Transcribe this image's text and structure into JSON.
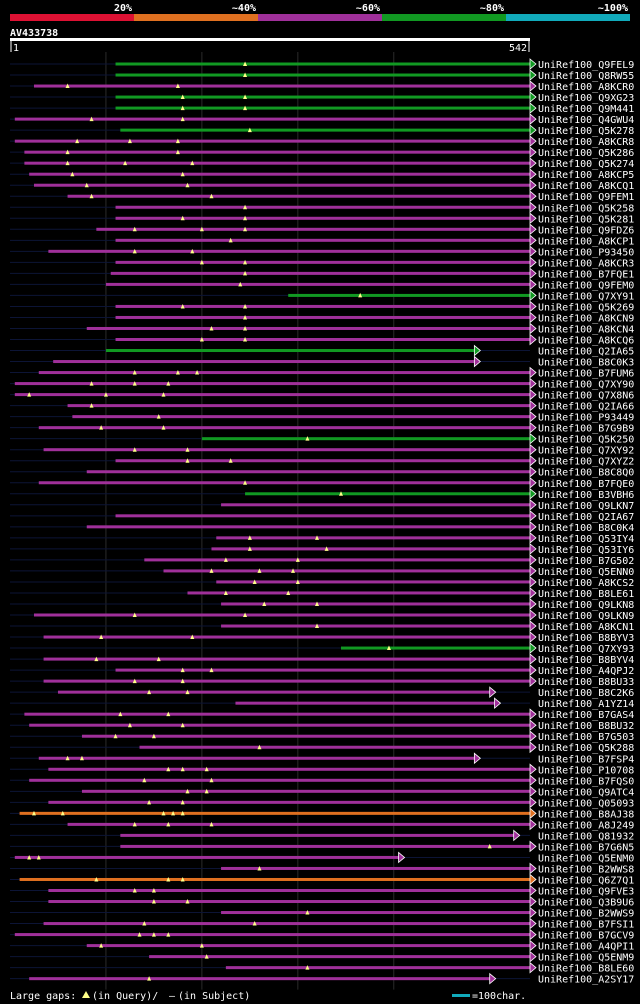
{
  "query_id": "AV433738",
  "scale": {
    "start": "1",
    "end": "542",
    "max": 542
  },
  "legend": {
    "segments": [
      {
        "label": "20%",
        "color": "#dd1133"
      },
      {
        "label": "~40%",
        "color": "#e07020"
      },
      {
        "label": "~60%",
        "color": "#a0309a"
      },
      {
        "label": "~80%",
        "color": "#119922"
      },
      {
        "label": "~100%",
        "color": "#11aabb"
      }
    ]
  },
  "footer": {
    "gaps_prefix": "Large gaps:",
    "gaps_query": "(in Query)/",
    "gaps_dash": "–",
    "gaps_subject": "(in Subject)",
    "scale_text": "=100char.",
    "scale_color": "#11aabb"
  },
  "chart_data": {
    "type": "alignment-overview",
    "title": "AV433738",
    "x_range": [
      1,
      542
    ],
    "gridlines": [
      100,
      200,
      300,
      400
    ],
    "hits": [
      {
        "id": "UniRef100_Q9FEL9",
        "start": 110,
        "end": 542,
        "color": "#119922",
        "gaps": [
          245
        ]
      },
      {
        "id": "UniRef100_Q8RW55",
        "start": 110,
        "end": 542,
        "color": "#119922",
        "gaps": [
          245
        ]
      },
      {
        "id": "UniRef100_A8KCR0",
        "start": 25,
        "end": 542,
        "color": "#a0309a",
        "gaps": [
          60,
          175
        ]
      },
      {
        "id": "UniRef100_Q9XG23",
        "start": 110,
        "end": 542,
        "color": "#119922",
        "gaps": [
          180,
          245
        ]
      },
      {
        "id": "UniRef100_Q9M441",
        "start": 110,
        "end": 542,
        "color": "#119922",
        "gaps": [
          180,
          245
        ]
      },
      {
        "id": "UniRef100_Q4GWU4",
        "start": 5,
        "end": 542,
        "color": "#a0309a",
        "gaps": [
          85,
          180
        ]
      },
      {
        "id": "UniRef100_Q5K278",
        "start": 115,
        "end": 542,
        "color": "#119922",
        "gaps": [
          250
        ]
      },
      {
        "id": "UniRef100_A8KCR8",
        "start": 5,
        "end": 542,
        "color": "#a0309a",
        "gaps": [
          70,
          125,
          175
        ]
      },
      {
        "id": "UniRef100_Q5K286",
        "start": 15,
        "end": 542,
        "color": "#a0309a",
        "gaps": [
          60,
          175
        ]
      },
      {
        "id": "UniRef100_Q5K274",
        "start": 15,
        "end": 542,
        "color": "#a0309a",
        "gaps": [
          60,
          120,
          190
        ]
      },
      {
        "id": "UniRef100_A8KCP5",
        "start": 20,
        "end": 542,
        "color": "#a0309a",
        "gaps": [
          65,
          180
        ]
      },
      {
        "id": "UniRef100_A8KCQ1",
        "start": 25,
        "end": 542,
        "color": "#a0309a",
        "gaps": [
          80,
          185
        ]
      },
      {
        "id": "UniRef100_Q9FEM1",
        "start": 60,
        "end": 542,
        "color": "#a0309a",
        "gaps": [
          85,
          210
        ]
      },
      {
        "id": "UniRef100_Q5K258",
        "start": 110,
        "end": 542,
        "color": "#a0309a",
        "gaps": [
          245
        ]
      },
      {
        "id": "UniRef100_Q5K281",
        "start": 110,
        "end": 542,
        "color": "#a0309a",
        "gaps": [
          180,
          245
        ]
      },
      {
        "id": "UniRef100_Q9FDZ6",
        "start": 90,
        "end": 542,
        "color": "#a0309a",
        "gaps": [
          130,
          200,
          245
        ]
      },
      {
        "id": "UniRef100_A8KCP1",
        "start": 110,
        "end": 542,
        "color": "#a0309a",
        "gaps": [
          230
        ]
      },
      {
        "id": "UniRef100_P93450",
        "start": 40,
        "end": 542,
        "color": "#a0309a",
        "gaps": [
          130,
          190
        ]
      },
      {
        "id": "UniRef100_A8KCR3",
        "start": 110,
        "end": 542,
        "color": "#a0309a",
        "gaps": [
          200,
          245
        ]
      },
      {
        "id": "UniRef100_B7FQE1",
        "start": 105,
        "end": 542,
        "color": "#a0309a",
        "gaps": [
          245
        ]
      },
      {
        "id": "UniRef100_Q9FEM0",
        "start": 100,
        "end": 542,
        "color": "#a0309a",
        "gaps": [
          240
        ]
      },
      {
        "id": "UniRef100_Q7XY91",
        "start": 290,
        "end": 542,
        "color": "#119922",
        "gaps": [
          365
        ]
      },
      {
        "id": "UniRef100_Q5K269",
        "start": 110,
        "end": 542,
        "color": "#a0309a",
        "gaps": [
          180,
          245
        ]
      },
      {
        "id": "UniRef100_A8KCN9",
        "start": 110,
        "end": 542,
        "color": "#a0309a",
        "gaps": [
          245
        ]
      },
      {
        "id": "UniRef100_A8KCN4",
        "start": 80,
        "end": 542,
        "color": "#a0309a",
        "gaps": [
          210,
          245
        ]
      },
      {
        "id": "UniRef100_A8KCQ6",
        "start": 110,
        "end": 542,
        "color": "#a0309a",
        "gaps": [
          200,
          245
        ]
      },
      {
        "id": "UniRef100_Q2IA65",
        "start": 100,
        "end": 484,
        "color": "#119922",
        "gaps": []
      },
      {
        "id": "UniRef100_B8C0K3",
        "start": 45,
        "end": 484,
        "color": "#a0309a",
        "gaps": []
      },
      {
        "id": "UniRef100_B7FUM6",
        "start": 30,
        "end": 542,
        "color": "#a0309a",
        "gaps": [
          130,
          175,
          195
        ]
      },
      {
        "id": "UniRef100_Q7XY90",
        "start": 5,
        "end": 542,
        "color": "#a0309a",
        "gaps": [
          85,
          130,
          165
        ]
      },
      {
        "id": "UniRef100_Q7X8N6",
        "start": 5,
        "end": 542,
        "color": "#a0309a",
        "gaps": [
          20,
          100,
          160
        ]
      },
      {
        "id": "UniRef100_Q2IA66",
        "start": 60,
        "end": 542,
        "color": "#a0309a",
        "gaps": [
          85
        ]
      },
      {
        "id": "UniRef100_P93449",
        "start": 65,
        "end": 542,
        "color": "#a0309a",
        "gaps": [
          155
        ]
      },
      {
        "id": "UniRef100_B7G9B9",
        "start": 30,
        "end": 542,
        "color": "#a0309a",
        "gaps": [
          95,
          160
        ]
      },
      {
        "id": "UniRef100_Q5K250",
        "start": 200,
        "end": 542,
        "color": "#119922",
        "gaps": [
          310
        ]
      },
      {
        "id": "UniRef100_Q7XY92",
        "start": 35,
        "end": 542,
        "color": "#a0309a",
        "gaps": [
          130,
          185
        ]
      },
      {
        "id": "UniRef100_Q7XYZ2",
        "start": 110,
        "end": 542,
        "color": "#a0309a",
        "gaps": [
          185,
          230
        ]
      },
      {
        "id": "UniRef100_B8C8Q0",
        "start": 80,
        "end": 542,
        "color": "#a0309a",
        "gaps": []
      },
      {
        "id": "UniRef100_B7FQE0",
        "start": 30,
        "end": 542,
        "color": "#a0309a",
        "gaps": [
          245
        ]
      },
      {
        "id": "UniRef100_B3VBH6",
        "start": 245,
        "end": 542,
        "color": "#119922",
        "gaps": [
          345
        ]
      },
      {
        "id": "UniRef100_Q9LKN7",
        "start": 220,
        "end": 542,
        "color": "#a0309a",
        "gaps": []
      },
      {
        "id": "UniRef100_Q2IA67",
        "start": 110,
        "end": 542,
        "color": "#a0309a",
        "gaps": []
      },
      {
        "id": "UniRef100_B8C0K4",
        "start": 80,
        "end": 542,
        "color": "#a0309a",
        "gaps": []
      },
      {
        "id": "UniRef100_Q53IY4",
        "start": 215,
        "end": 542,
        "color": "#a0309a",
        "gaps": [
          250,
          320
        ]
      },
      {
        "id": "UniRef100_Q53IY6",
        "start": 210,
        "end": 542,
        "color": "#a0309a",
        "gaps": [
          250,
          330
        ]
      },
      {
        "id": "UniRef100_B7G502",
        "start": 140,
        "end": 542,
        "color": "#a0309a",
        "gaps": [
          225,
          300
        ]
      },
      {
        "id": "UniRef100_Q5ENN0",
        "start": 160,
        "end": 542,
        "color": "#a0309a",
        "gaps": [
          210,
          260,
          295
        ]
      },
      {
        "id": "UniRef100_A8KCS2",
        "start": 215,
        "end": 542,
        "color": "#a0309a",
        "gaps": [
          255,
          300
        ]
      },
      {
        "id": "UniRef100_B8LE61",
        "start": 185,
        "end": 542,
        "color": "#a0309a",
        "gaps": [
          225,
          290
        ]
      },
      {
        "id": "UniRef100_Q9LKN8",
        "start": 220,
        "end": 542,
        "color": "#a0309a",
        "gaps": [
          265,
          320
        ]
      },
      {
        "id": "UniRef100_Q9LKN9",
        "start": 25,
        "end": 542,
        "color": "#a0309a",
        "gaps": [
          130,
          245
        ]
      },
      {
        "id": "UniRef100_A8KCN1",
        "start": 220,
        "end": 542,
        "color": "#a0309a",
        "gaps": [
          320
        ]
      },
      {
        "id": "UniRef100_B8BYV3",
        "start": 35,
        "end": 542,
        "color": "#a0309a",
        "gaps": [
          95,
          190
        ]
      },
      {
        "id": "UniRef100_Q7XY93",
        "start": 345,
        "end": 542,
        "color": "#119922",
        "gaps": [
          395
        ]
      },
      {
        "id": "UniRef100_B8BYV4",
        "start": 35,
        "end": 542,
        "color": "#a0309a",
        "gaps": [
          90,
          155
        ]
      },
      {
        "id": "UniRef100_A4QPJ2",
        "start": 110,
        "end": 542,
        "color": "#a0309a",
        "gaps": [
          180,
          210
        ]
      },
      {
        "id": "UniRef100_B8BU33",
        "start": 35,
        "end": 542,
        "color": "#a0309a",
        "gaps": [
          130,
          180
        ]
      },
      {
        "id": "UniRef100_B8C2K6",
        "start": 50,
        "end": 500,
        "color": "#a0309a",
        "gaps": [
          145,
          185
        ]
      },
      {
        "id": "UniRef100_A1YZ14",
        "start": 235,
        "end": 505,
        "color": "#a0309a",
        "gaps": []
      },
      {
        "id": "UniRef100_B7GAS4",
        "start": 15,
        "end": 542,
        "color": "#a0309a",
        "gaps": [
          115,
          165
        ]
      },
      {
        "id": "UniRef100_B8BU32",
        "start": 20,
        "end": 542,
        "color": "#a0309a",
        "gaps": [
          125,
          180
        ]
      },
      {
        "id": "UniRef100_B7G503",
        "start": 75,
        "end": 542,
        "color": "#a0309a",
        "gaps": [
          110,
          150
        ]
      },
      {
        "id": "UniRef100_Q5K288",
        "start": 135,
        "end": 542,
        "color": "#a0309a",
        "gaps": [
          260
        ]
      },
      {
        "id": "UniRef100_B7FSP4",
        "start": 30,
        "end": 484,
        "color": "#a0309a",
        "gaps": [
          60,
          75
        ]
      },
      {
        "id": "UniRef100_P10708",
        "start": 40,
        "end": 542,
        "color": "#a0309a",
        "gaps": [
          165,
          180,
          205
        ]
      },
      {
        "id": "UniRef100_B7FQS0",
        "start": 20,
        "end": 542,
        "color": "#a0309a",
        "gaps": [
          140,
          210
        ]
      },
      {
        "id": "UniRef100_Q9ATC4",
        "start": 75,
        "end": 542,
        "color": "#a0309a",
        "gaps": [
          185,
          205
        ]
      },
      {
        "id": "UniRef100_Q05093",
        "start": 40,
        "end": 542,
        "color": "#a0309a",
        "gaps": [
          145,
          180
        ]
      },
      {
        "id": "UniRef100_B8AJ38",
        "start": 10,
        "end": 542,
        "color": "#e07020",
        "gaps": [
          25,
          55,
          160,
          170,
          180
        ]
      },
      {
        "id": "UniRef100_A8J249",
        "start": 60,
        "end": 542,
        "color": "#a0309a",
        "gaps": [
          130,
          165,
          210
        ]
      },
      {
        "id": "UniRef100_Q81932",
        "start": 115,
        "end": 525,
        "color": "#a0309a",
        "gaps": []
      },
      {
        "id": "UniRef100_B7G6N5",
        "start": 115,
        "end": 542,
        "color": "#a0309a",
        "gaps": [
          500
        ]
      },
      {
        "id": "UniRef100_Q5ENM0",
        "start": 5,
        "end": 405,
        "color": "#a0309a",
        "gaps": [
          20,
          30
        ]
      },
      {
        "id": "UniRef100_B2WWS8",
        "start": 220,
        "end": 542,
        "color": "#a0309a",
        "gaps": [
          260
        ]
      },
      {
        "id": "UniRef100_Q6Z7Q1",
        "start": 10,
        "end": 542,
        "color": "#e07020",
        "gaps": [
          90,
          165,
          180
        ]
      },
      {
        "id": "UniRef100_Q9FVE3",
        "start": 40,
        "end": 542,
        "color": "#a0309a",
        "gaps": [
          130,
          150
        ]
      },
      {
        "id": "UniRef100_Q3B9U6",
        "start": 40,
        "end": 542,
        "color": "#a0309a",
        "gaps": [
          150,
          185
        ]
      },
      {
        "id": "UniRef100_B2WWS9",
        "start": 220,
        "end": 542,
        "color": "#a0309a",
        "gaps": [
          310
        ]
      },
      {
        "id": "UniRef100_B7FSI1",
        "start": 35,
        "end": 542,
        "color": "#a0309a",
        "gaps": [
          140,
          255
        ]
      },
      {
        "id": "UniRef100_B7GCV9",
        "start": 5,
        "end": 542,
        "color": "#a0309a",
        "gaps": [
          135,
          150,
          165
        ]
      },
      {
        "id": "UniRef100_A4QPI1",
        "start": 80,
        "end": 542,
        "color": "#a0309a",
        "gaps": [
          95,
          200
        ]
      },
      {
        "id": "UniRef100_Q5ENM9",
        "start": 145,
        "end": 542,
        "color": "#a0309a",
        "gaps": [
          205
        ]
      },
      {
        "id": "UniRef100_B8LE60",
        "start": 225,
        "end": 542,
        "color": "#a0309a",
        "gaps": [
          310
        ]
      },
      {
        "id": "UniRef100_A2SY17",
        "start": 20,
        "end": 500,
        "color": "#a0309a",
        "gaps": [
          145
        ]
      }
    ]
  }
}
